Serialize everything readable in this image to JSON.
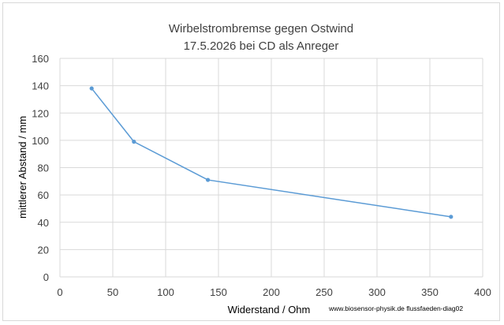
{
  "chart_data": {
    "type": "line",
    "title_line1": "Wirbelstrombremse gegen Ostwind",
    "title_line2": "17.5.2026 bei CD als Anreger",
    "xlabel": "Widerstand / Ohm",
    "ylabel": "mittlerer Abstand / mm",
    "xlim": [
      0,
      400
    ],
    "ylim": [
      0,
      160
    ],
    "xticks": [
      "0",
      "50",
      "100",
      "150",
      "200",
      "250",
      "300",
      "350",
      "400"
    ],
    "yticks": [
      "0",
      "20",
      "40",
      "60",
      "80",
      "100",
      "120",
      "140",
      "160"
    ],
    "grid": true,
    "series": [
      {
        "x": [
          30,
          70,
          140,
          370
        ],
        "y": [
          138,
          99,
          71,
          44
        ]
      }
    ],
    "colors": {
      "line": "#5b9bd5",
      "grid": "#d9d9d9",
      "text": "#404040"
    },
    "source_note": "www.biosensor-physik.de  flussfaeden-diag02"
  }
}
